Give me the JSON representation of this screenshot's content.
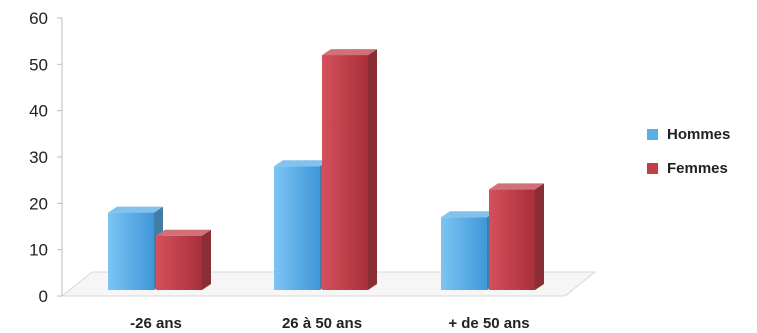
{
  "chart_data": {
    "type": "bar",
    "categories": [
      "-26 ans",
      "26 à 50 ans",
      "+ de 50 ans"
    ],
    "series": [
      {
        "name": "Hommes",
        "values": [
          18,
          28,
          17
        ],
        "color": "#5aaee8"
      },
      {
        "name": "Femmes",
        "values": [
          13,
          52,
          23
        ],
        "color": "#c0404a"
      }
    ],
    "ylim": [
      0,
      60
    ],
    "yticks": [
      0,
      10,
      20,
      30,
      40,
      50,
      60
    ],
    "title": "",
    "xlabel": "",
    "ylabel": "",
    "legend_position": "right",
    "grid": false
  }
}
